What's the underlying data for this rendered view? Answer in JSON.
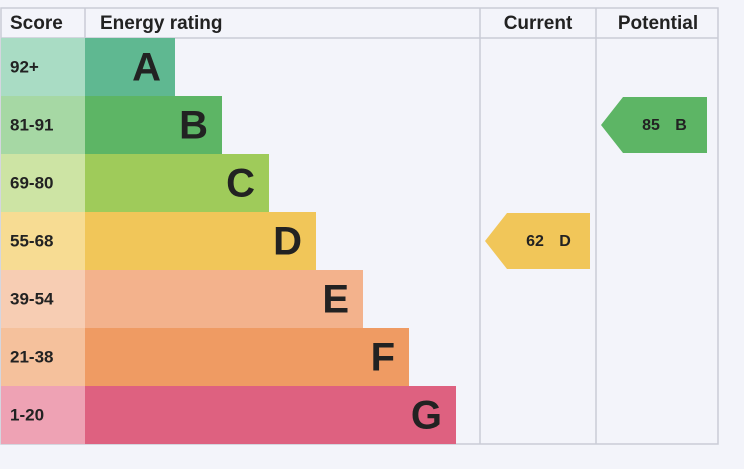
{
  "header": {
    "score": "Score",
    "rating": "Energy rating",
    "current": "Current",
    "potential": "Potential"
  },
  "bands": [
    {
      "score": "92+",
      "rating": "A"
    },
    {
      "score": "81-91",
      "rating": "B"
    },
    {
      "score": "69-80",
      "rating": "C"
    },
    {
      "score": "55-68",
      "rating": "D"
    },
    {
      "score": "39-54",
      "rating": "E"
    },
    {
      "score": "21-38",
      "rating": "F"
    },
    {
      "score": "1-20",
      "rating": "G"
    }
  ],
  "current": {
    "value": "62",
    "rating": "D"
  },
  "potential": {
    "value": "85",
    "rating": "B"
  }
}
